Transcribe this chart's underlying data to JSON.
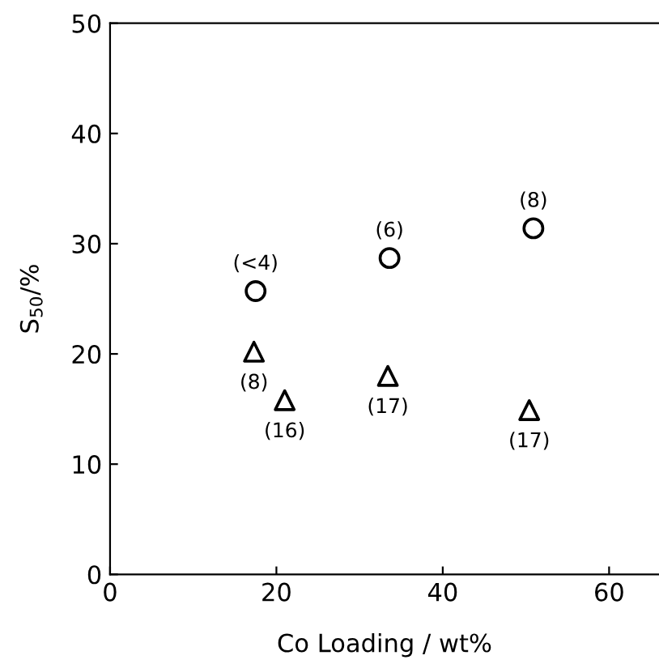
{
  "chart_data": {
    "type": "scatter",
    "xlabel": "Co Loading / wt%",
    "ylabel": "S$_{50}$/%",
    "xlim": [
      0,
      66
    ],
    "ylim": [
      0,
      50
    ],
    "xticks": [
      0,
      20,
      40,
      60
    ],
    "yticks": [
      0,
      10,
      20,
      30,
      40,
      50
    ],
    "grid": false,
    "legend": false,
    "series": [
      {
        "color": "#000000",
        "marker": "circle",
        "x": [
          17.5,
          33.6,
          50.9
        ],
        "values": [
          25.7,
          28.7,
          31.4
        ]
      },
      {
        "color": "#000000",
        "marker": "triangle",
        "x": [
          17.3,
          21.0,
          33.4,
          50.4
        ],
        "values": [
          20.2,
          15.8,
          18.0,
          14.9
        ]
      }
    ],
    "annotations": [
      {
        "text": "(<4)",
        "x": 17.5,
        "y": 25.7
      },
      {
        "text": "(6)",
        "x": 33.6,
        "y": 28.7
      },
      {
        "text": "(8)",
        "x": 50.9,
        "y": 31.4
      },
      {
        "text": "(8)",
        "x": 17.3,
        "y": 20.2
      },
      {
        "text": "(16)",
        "x": 21.0,
        "y": 15.8
      },
      {
        "text": "(17)",
        "x": 33.4,
        "y": 18.0
      },
      {
        "text": "(17)",
        "x": 50.4,
        "y": 14.9
      }
    ]
  }
}
